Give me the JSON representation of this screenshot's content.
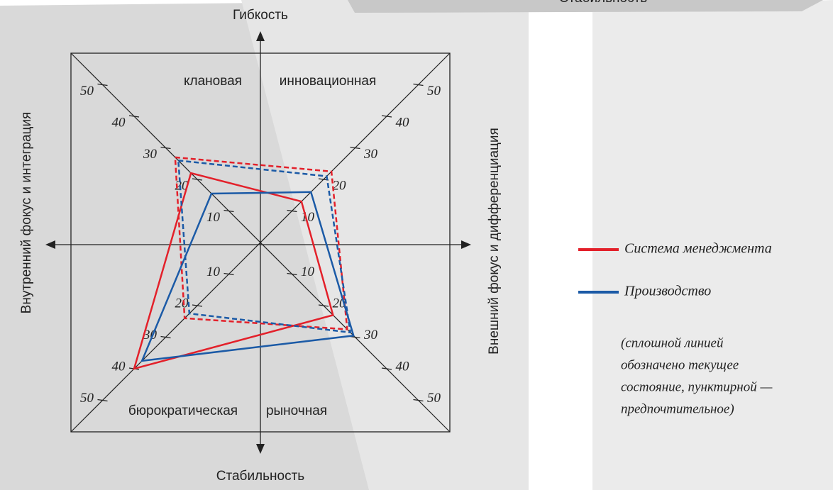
{
  "chart_data": {
    "type": "radar",
    "top_caption": "Стабильность",
    "axis_top": "Гибкость",
    "axis_bottom": "Стабильность",
    "axis_left": "Внутренний фокус и интеграция",
    "axis_right": "Внешний фокус и дифференциация",
    "categories": [
      "клановая",
      "инновационная",
      "рыночная",
      "бюрократическая"
    ],
    "rlim": [
      0,
      60
    ],
    "rticks": [
      10,
      20,
      30,
      40,
      50
    ],
    "series": [
      {
        "name": "Система менеджмента",
        "color": "#e3202a",
        "values": [
          22,
          13,
          23,
          40
        ],
        "preferred_values": [
          27,
          22.5,
          27.5,
          24
        ]
      },
      {
        "name": "Производство",
        "color": "#1b5aa6",
        "values": [
          15.5,
          16,
          29.5,
          37.5
        ],
        "preferred_values": [
          26,
          21,
          28.5,
          22.5
        ]
      }
    ],
    "note": [
      "(сплошной линией",
      "обозначено текущее",
      "состояние, пунктирной —",
      "предпочтительное)"
    ]
  }
}
